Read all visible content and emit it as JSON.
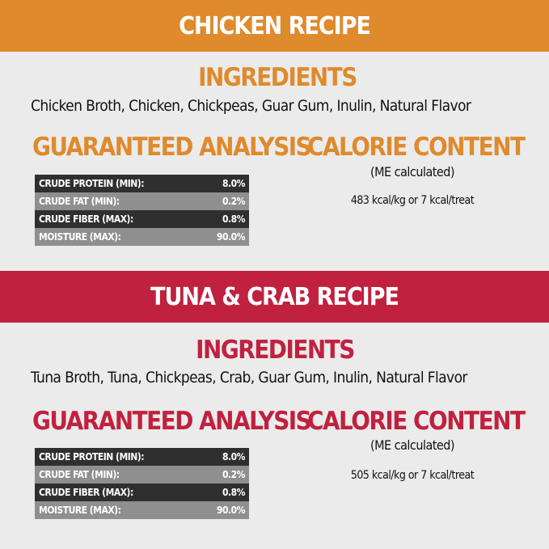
{
  "colors": {
    "chicken": "#df8a2c",
    "tuna": "#c0213f",
    "row_dark": "#2f2f2f",
    "row_light": "#8f8f8f",
    "background": "#ebebeb"
  },
  "recipes": [
    {
      "title": "CHICKEN RECIPE",
      "ingredients_heading": "INGREDIENTS",
      "ingredients": "Chicken Broth, Chicken, Chickpeas, Guar Gum, Inulin, Natural Flavor",
      "analysis_heading": "GUARANTEED ANALYSIS",
      "calorie_heading": "CALORIE CONTENT",
      "calorie_note": "(ME calculated)",
      "calories": "483 kcal/kg or 7 kcal/treat",
      "analysis": [
        {
          "label": "CRUDE PROTEIN (MIN):",
          "value": "8.0%"
        },
        {
          "label": "CRUDE FAT (MIN):",
          "value": "0.2%"
        },
        {
          "label": "CRUDE FIBER (MAX):",
          "value": "0.8%"
        },
        {
          "label": "MOISTURE (MAX):",
          "value": "90.0%"
        }
      ]
    },
    {
      "title": "TUNA & CRAB RECIPE",
      "ingredients_heading": "INGREDIENTS",
      "ingredients": "Tuna Broth, Tuna, Chickpeas, Crab, Guar Gum, Inulin, Natural Flavor",
      "analysis_heading": "GUARANTEED ANALYSIS",
      "calorie_heading": "CALORIE CONTENT",
      "calorie_note": "(ME calculated)",
      "calories": "505 kcal/kg or 7 kcal/treat",
      "analysis": [
        {
          "label": "CRUDE PROTEIN (MIN):",
          "value": "8.0%"
        },
        {
          "label": "CRUDE FAT (MIN):",
          "value": "0.2%"
        },
        {
          "label": "CRUDE FIBER (MAX):",
          "value": "0.8%"
        },
        {
          "label": "MOISTURE (MAX):",
          "value": "90.0%"
        }
      ]
    }
  ]
}
